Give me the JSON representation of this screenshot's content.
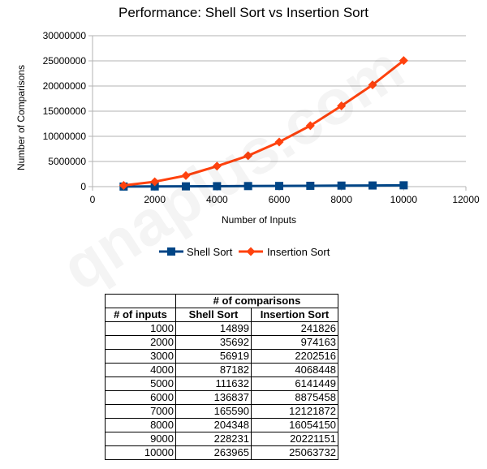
{
  "watermark": "qnaplus.com",
  "chart_data": {
    "type": "line",
    "title": "Performance: Shell Sort vs Insertion Sort",
    "xlabel": "Number of Inputs",
    "ylabel": "Number of Comparisons",
    "xlim": [
      0,
      12000
    ],
    "ylim": [
      0,
      30000000
    ],
    "x_ticks": [
      0,
      2000,
      4000,
      6000,
      8000,
      10000,
      12000
    ],
    "y_ticks": [
      0,
      5000000,
      10000000,
      15000000,
      20000000,
      25000000,
      30000000
    ],
    "grid": "horizontal",
    "legend_position": "bottom",
    "x": [
      1000,
      2000,
      3000,
      4000,
      5000,
      6000,
      7000,
      8000,
      9000,
      10000
    ],
    "series": [
      {
        "name": "Shell Sort",
        "color": "#004586",
        "marker": "square",
        "values": [
          14899,
          35692,
          56919,
          87182,
          111632,
          136837,
          165590,
          204348,
          228231,
          263965
        ]
      },
      {
        "name": "Insertion Sort",
        "color": "#ff420e",
        "marker": "diamond",
        "values": [
          241826,
          974163,
          2202516,
          4068448,
          6141449,
          8875458,
          12121872,
          16054150,
          20221151,
          25063732
        ]
      }
    ]
  },
  "table": {
    "group_header": "# of comparisons",
    "headers": [
      "# of inputs",
      "Shell Sort",
      "Insertion Sort"
    ],
    "rows": [
      [
        "1000",
        "14899",
        "241826"
      ],
      [
        "2000",
        "35692",
        "974163"
      ],
      [
        "3000",
        "56919",
        "2202516"
      ],
      [
        "4000",
        "87182",
        "4068448"
      ],
      [
        "5000",
        "111632",
        "6141449"
      ],
      [
        "6000",
        "136837",
        "8875458"
      ],
      [
        "7000",
        "165590",
        "12121872"
      ],
      [
        "8000",
        "204348",
        "16054150"
      ],
      [
        "9000",
        "228231",
        "20221151"
      ],
      [
        "10000",
        "263965",
        "25063732"
      ]
    ]
  }
}
